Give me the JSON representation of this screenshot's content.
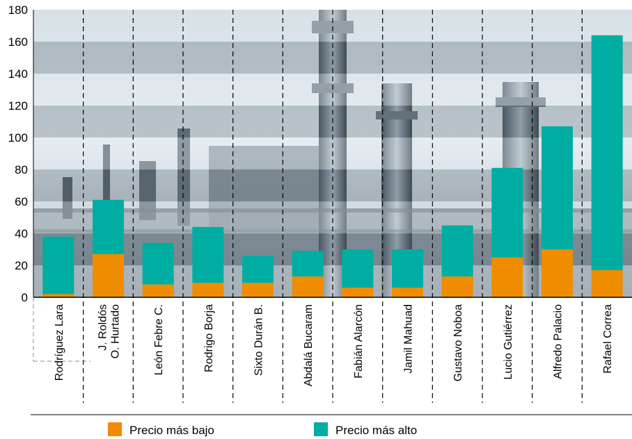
{
  "chart_data": {
    "type": "bar",
    "stacked": true,
    "title": "",
    "xlabel": "",
    "ylabel": "",
    "ylim": [
      0,
      180
    ],
    "yticks": [
      0,
      20,
      40,
      60,
      80,
      100,
      120,
      140,
      160,
      180
    ],
    "grid": "horizontal bands",
    "legend_position": "bottom",
    "background": "refinery photo",
    "categories": [
      "Rodríguez Lara",
      "J. Roldós O. Hurtado",
      "León Febre C.",
      "Rodrigo Borja",
      "Sixto Durán B.",
      "Abdalá Bucaram",
      "Fabián Alarcón",
      "Jamil Mahuad",
      "Gustavo Noboa",
      "Lucio Gutiérrez",
      "Alfredo Palacio",
      "Rafael Correa"
    ],
    "category_lines": [
      [
        "Rodríguez Lara"
      ],
      [
        "J. Roldós",
        "O. Hurtado"
      ],
      [
        "León Febre C."
      ],
      [
        "Rodrigo Borja"
      ],
      [
        "Sixto Durán B."
      ],
      [
        "Abdalá Bucaram"
      ],
      [
        "Fabián Alarcón"
      ],
      [
        "Jamil Mahuad"
      ],
      [
        "Gustavo Noboa"
      ],
      [
        "Lucio Gutiérrez"
      ],
      [
        "Alfredo Palacio"
      ],
      [
        "Rafael Correa"
      ]
    ],
    "series": [
      {
        "name": "Precio más bajo",
        "color": "#f08c00",
        "values": [
          2,
          27,
          8,
          9,
          9,
          13,
          6,
          6,
          13,
          25,
          30,
          17
        ]
      },
      {
        "name": "Precio más alto",
        "color": "#00ada2",
        "values": [
          38,
          61,
          34,
          44,
          26,
          29,
          30,
          30,
          45,
          81,
          107,
          164
        ]
      }
    ]
  },
  "legend": {
    "low_label": "Precio más bajo",
    "high_label": "Precio más alto"
  }
}
